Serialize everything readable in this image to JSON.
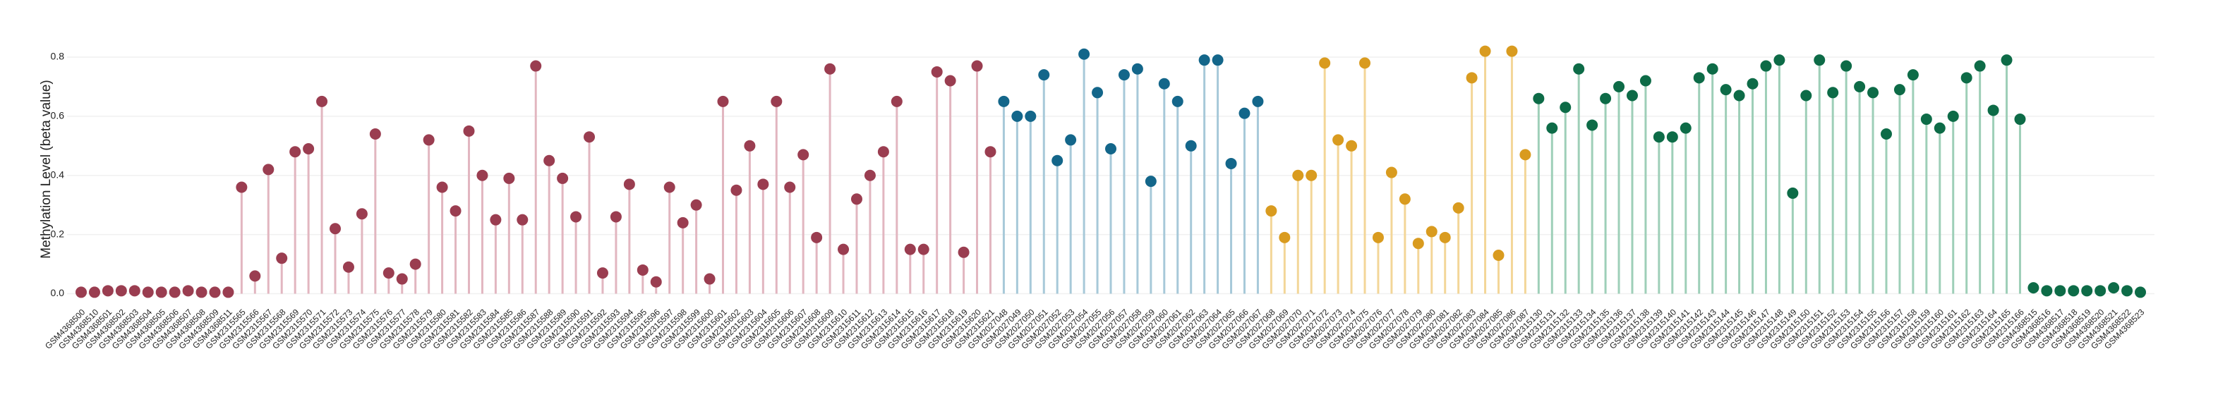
{
  "chart_data": {
    "type": "lollipop",
    "y_label": "Methylation Level (beta value)",
    "ylim": [
      -0.025,
      0.85
    ],
    "yticks": [
      {
        "value": 0,
        "label": "0.0"
      },
      0.2,
      0.4,
      0.6,
      0.8
    ],
    "grid": true,
    "series": [
      {
        "color": "#9a3d50",
        "stem_color": "#e2b6c0",
        "categories": [
          "GSM4368500",
          "GSM4368510",
          "GSM4368501",
          "GSM4368502",
          "GSM4368503",
          "GSM4368504",
          "GSM4368505",
          "GSM4368506",
          "GSM4368507",
          "GSM4368508",
          "GSM4368509",
          "GSM4368511",
          "GSM2315565",
          "GSM2315566",
          "GSM2315567",
          "GSM2315568",
          "GSM2315569",
          "GSM2315570",
          "GSM2315571",
          "GSM2315572",
          "GSM2315573",
          "GSM2315574",
          "GSM2315575",
          "GSM2315576",
          "GSM2315577",
          "GSM2315578",
          "GSM2315579",
          "GSM2315580",
          "GSM2315581",
          "GSM2315582",
          "GSM2315583",
          "GSM2315584",
          "GSM2315585",
          "GSM2315586",
          "GSM2315587",
          "GSM2315588",
          "GSM2315589",
          "GSM2315590",
          "GSM2315591",
          "GSM2315592",
          "GSM2315593",
          "GSM2315594",
          "GSM2315595",
          "GSM2315596",
          "GSM2315597",
          "GSM2315598",
          "GSM2315599",
          "GSM2315600",
          "GSM2315601",
          "GSM2315602",
          "GSM2315603",
          "GSM2315604",
          "GSM2315605",
          "GSM2315606",
          "GSM2315607",
          "GSM2315608",
          "GSM2315609",
          "GSM2315610",
          "GSM2315611",
          "GSM2315612",
          "GSM2315613",
          "GSM2315614",
          "GSM2315615",
          "GSM2315616",
          "GSM2315617",
          "GSM2315618",
          "GSM2315619",
          "GSM2315620",
          "GSM2315621"
        ],
        "values": [
          0.005,
          0.005,
          0.01,
          0.01,
          0.01,
          0.005,
          0.005,
          0.005,
          0.01,
          0.005,
          0.005,
          0.005,
          0.36,
          0.06,
          0.42,
          0.12,
          0.48,
          0.49,
          0.65,
          0.22,
          0.09,
          0.27,
          0.54,
          0.07,
          0.05,
          0.1,
          0.52,
          0.36,
          0.28,
          0.55,
          0.4,
          0.25,
          0.39,
          0.25,
          0.77,
          0.45,
          0.39,
          0.26,
          0.53,
          0.07,
          0.26,
          0.37,
          0.08,
          0.04,
          0.36,
          0.24,
          0.3,
          0.05,
          0.65,
          0.35,
          0.5,
          0.37,
          0.65,
          0.36,
          0.47,
          0.19,
          0.76,
          0.15,
          0.32,
          0.4,
          0.48,
          0.65,
          0.15,
          0.15,
          0.75,
          0.72,
          0.14,
          0.77,
          0.48
        ]
      },
      {
        "color": "#13668a",
        "stem_color": "#a7c9d9",
        "categories": [
          "GSM2027048",
          "GSM2027049",
          "GSM2027050",
          "GSM2027051",
          "GSM2027052",
          "GSM2027053",
          "GSM2027054",
          "GSM2027055",
          "GSM2027056",
          "GSM2027057",
          "GSM2027058",
          "GSM2027059",
          "GSM2027060",
          "GSM2027061",
          "GSM2027062",
          "GSM2027063",
          "GSM2027064",
          "GSM2027065",
          "GSM2027066",
          "GSM2027067"
        ],
        "values": [
          0.65,
          0.6,
          0.6,
          0.74,
          0.45,
          0.52,
          0.81,
          0.68,
          0.49,
          0.74,
          0.76,
          0.38,
          0.71,
          0.65,
          0.5,
          0.79,
          0.79,
          0.44,
          0.61,
          0.65
        ]
      },
      {
        "color": "#d99b1f",
        "stem_color": "#f3d698",
        "categories": [
          "GSM2027068",
          "GSM2027069",
          "GSM2027070",
          "GSM2027071",
          "GSM2027072",
          "GSM2027073",
          "GSM2027074",
          "GSM2027075",
          "GSM2027076",
          "GSM2027077",
          "GSM2027078",
          "GSM2027079",
          "GSM2027080",
          "GSM2027081",
          "GSM2027082",
          "GSM2027083",
          "GSM2027084",
          "GSM2027085",
          "GSM2027086",
          "GSM2027087"
        ],
        "values": [
          0.28,
          0.19,
          0.4,
          0.4,
          0.78,
          0.52,
          0.5,
          0.78,
          0.19,
          0.41,
          0.32,
          0.17,
          0.21,
          0.19,
          0.29,
          0.73,
          0.82,
          0.13,
          0.82,
          0.47
        ]
      },
      {
        "color": "#0d6b47",
        "stem_color": "#9ecfb8",
        "categories": [
          "GSM2315130",
          "GSM2315131",
          "GSM2315132",
          "GSM2315133",
          "GSM2315134",
          "GSM2315135",
          "GSM2315136",
          "GSM2315137",
          "GSM2315138",
          "GSM2315139",
          "GSM2315140",
          "GSM2315141",
          "GSM2315142",
          "GSM2315143",
          "GSM2315144",
          "GSM2315145",
          "GSM2315146",
          "GSM2315147",
          "GSM2315148",
          "GSM2315149",
          "GSM2315150",
          "GSM2315151",
          "GSM2315152",
          "GSM2315153",
          "GSM2315154",
          "GSM2315155",
          "GSM2315156",
          "GSM2315157",
          "GSM2315158",
          "GSM2315159",
          "GSM2315160",
          "GSM2315161",
          "GSM2315162",
          "GSM2315163",
          "GSM2315164",
          "GSM2315165",
          "GSM2315166",
          "GSM4368515",
          "GSM4368516",
          "GSM4368517",
          "GSM4368518",
          "GSM4368519",
          "GSM4368520",
          "GSM4368521",
          "GSM4368522",
          "GSM4368523"
        ],
        "values": [
          0.66,
          0.56,
          0.63,
          0.76,
          0.57,
          0.66,
          0.7,
          0.67,
          0.72,
          0.53,
          0.53,
          0.56,
          0.73,
          0.76,
          0.69,
          0.67,
          0.71,
          0.77,
          0.79,
          0.34,
          0.67,
          0.79,
          0.68,
          0.77,
          0.7,
          0.68,
          0.54,
          0.69,
          0.74,
          0.59,
          0.56,
          0.6,
          0.73,
          0.77,
          0.62,
          0.79,
          0.59,
          0.02,
          0.01,
          0.01,
          0.01,
          0.01,
          0.01,
          0.02,
          0.01,
          0.005
        ]
      }
    ]
  }
}
